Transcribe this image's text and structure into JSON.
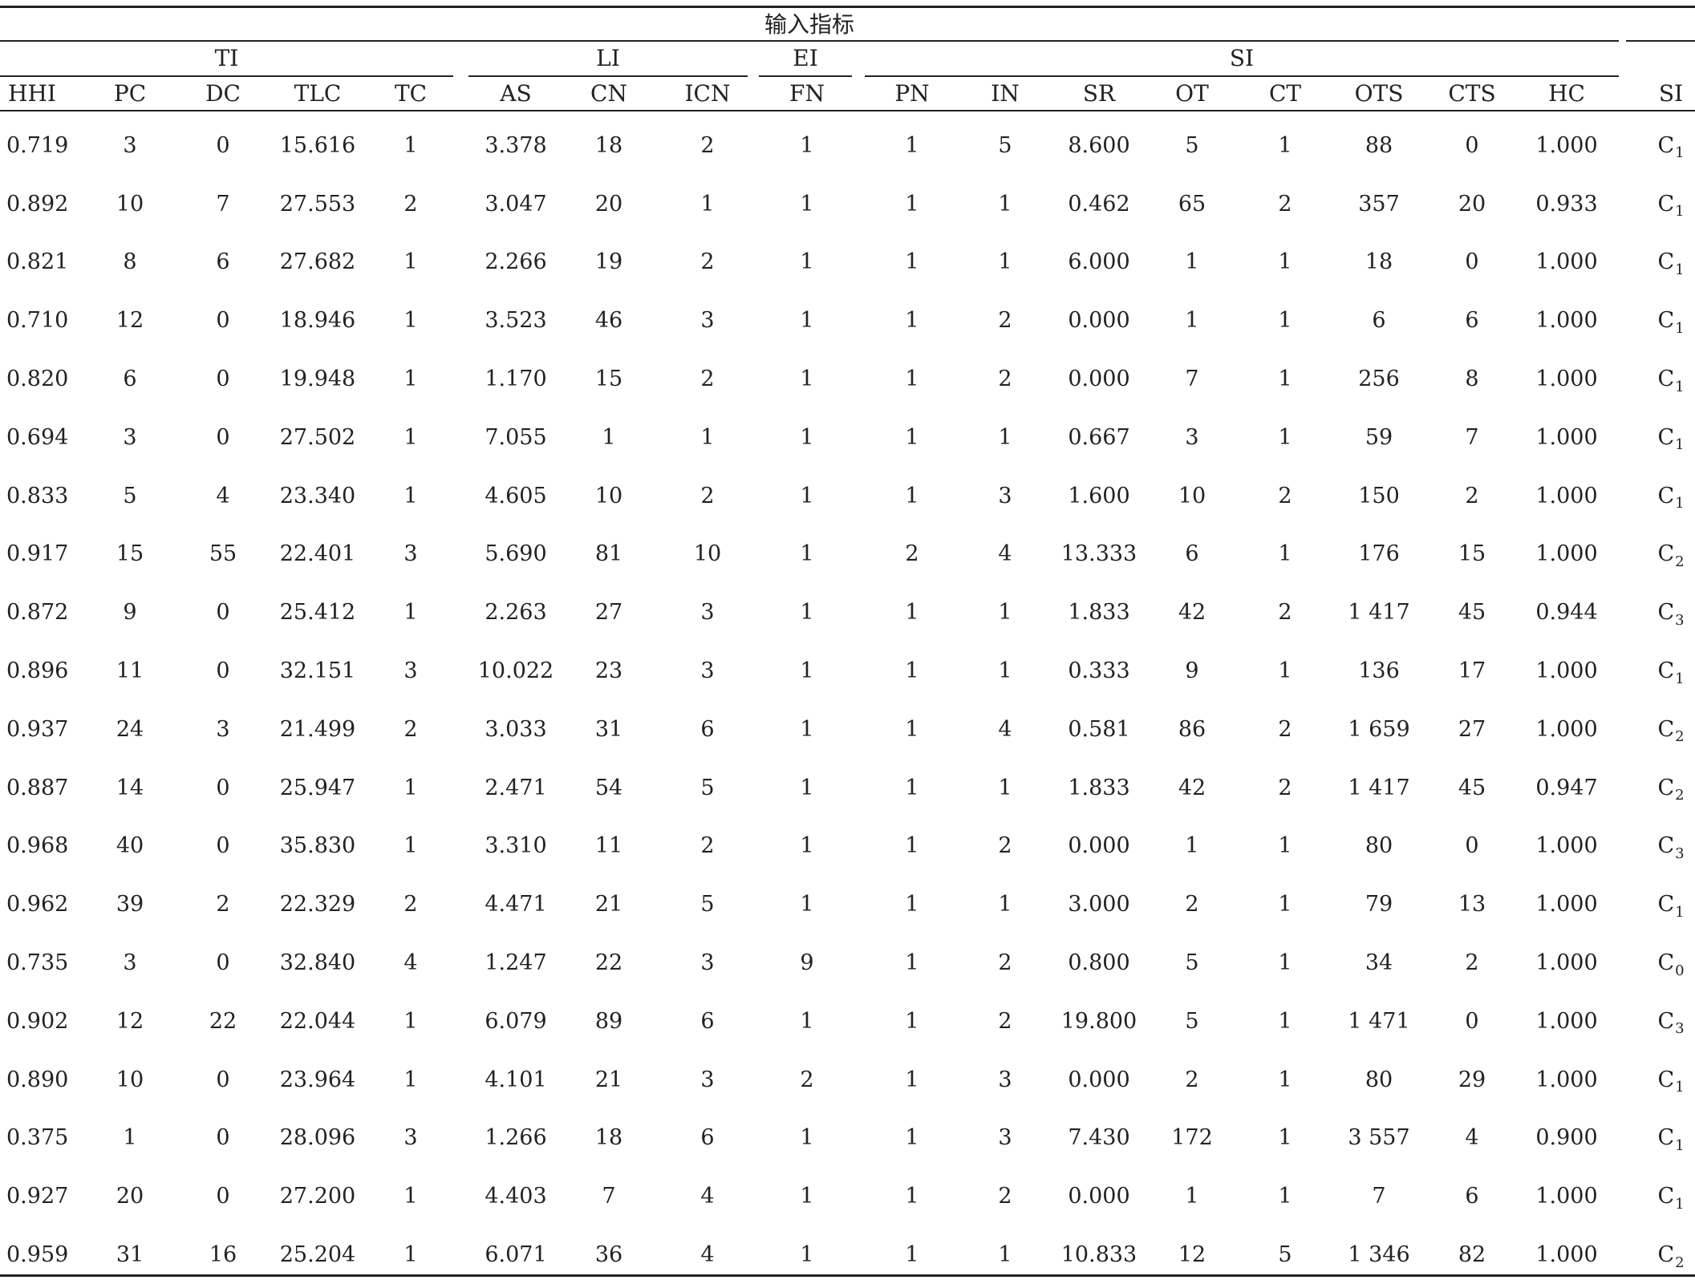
{
  "header": {
    "input_title": "输入指标",
    "groups": [
      {
        "label": "TI",
        "from": 0,
        "to": 4
      },
      {
        "label": "LI",
        "from": 5,
        "to": 7
      },
      {
        "label": "EI",
        "from": 8,
        "to": 8
      },
      {
        "label": "SI",
        "from": 9,
        "to": 16
      }
    ],
    "columns": [
      "HHI",
      "PC",
      "DC",
      "TLC",
      "TC",
      "AS",
      "CN",
      "ICN",
      "FN",
      "PN",
      "IN",
      "SR",
      "OT",
      "CT",
      "OTS",
      "CTS",
      "HC"
    ],
    "output_column": "SI"
  },
  "rows": [
    {
      "values": [
        "0.719",
        "3",
        "0",
        "15.616",
        "1",
        "3.378",
        "18",
        "2",
        "1",
        "1",
        "5",
        "8.600",
        "5",
        "1",
        "88",
        "0",
        "1.000"
      ],
      "si": {
        "letter": "C",
        "sub": "1"
      }
    },
    {
      "values": [
        "0.892",
        "10",
        "7",
        "27.553",
        "2",
        "3.047",
        "20",
        "1",
        "1",
        "1",
        "1",
        "0.462",
        "65",
        "2",
        "357",
        "20",
        "0.933"
      ],
      "si": {
        "letter": "C",
        "sub": "1"
      }
    },
    {
      "values": [
        "0.821",
        "8",
        "6",
        "27.682",
        "1",
        "2.266",
        "19",
        "2",
        "1",
        "1",
        "1",
        "6.000",
        "1",
        "1",
        "18",
        "0",
        "1.000"
      ],
      "si": {
        "letter": "C",
        "sub": "1"
      }
    },
    {
      "values": [
        "0.710",
        "12",
        "0",
        "18.946",
        "1",
        "3.523",
        "46",
        "3",
        "1",
        "1",
        "2",
        "0.000",
        "1",
        "1",
        "6",
        "6",
        "1.000"
      ],
      "si": {
        "letter": "C",
        "sub": "1"
      }
    },
    {
      "values": [
        "0.820",
        "6",
        "0",
        "19.948",
        "1",
        "1.170",
        "15",
        "2",
        "1",
        "1",
        "2",
        "0.000",
        "7",
        "1",
        "256",
        "8",
        "1.000"
      ],
      "si": {
        "letter": "C",
        "sub": "1"
      }
    },
    {
      "values": [
        "0.694",
        "3",
        "0",
        "27.502",
        "1",
        "7.055",
        "1",
        "1",
        "1",
        "1",
        "1",
        "0.667",
        "3",
        "1",
        "59",
        "7",
        "1.000"
      ],
      "si": {
        "letter": "C",
        "sub": "1"
      }
    },
    {
      "values": [
        "0.833",
        "5",
        "4",
        "23.340",
        "1",
        "4.605",
        "10",
        "2",
        "1",
        "1",
        "3",
        "1.600",
        "10",
        "2",
        "150",
        "2",
        "1.000"
      ],
      "si": {
        "letter": "C",
        "sub": "1"
      }
    },
    {
      "values": [
        "0.917",
        "15",
        "55",
        "22.401",
        "3",
        "5.690",
        "81",
        "10",
        "1",
        "2",
        "4",
        "13.333",
        "6",
        "1",
        "176",
        "15",
        "1.000"
      ],
      "si": {
        "letter": "C",
        "sub": "2"
      }
    },
    {
      "values": [
        "0.872",
        "9",
        "0",
        "25.412",
        "1",
        "2.263",
        "27",
        "3",
        "1",
        "1",
        "1",
        "1.833",
        "42",
        "2",
        "1 417",
        "45",
        "0.944"
      ],
      "si": {
        "letter": "C",
        "sub": "3"
      }
    },
    {
      "values": [
        "0.896",
        "11",
        "0",
        "32.151",
        "3",
        "10.022",
        "23",
        "3",
        "1",
        "1",
        "1",
        "0.333",
        "9",
        "1",
        "136",
        "17",
        "1.000"
      ],
      "si": {
        "letter": "C",
        "sub": "1"
      }
    },
    {
      "values": [
        "0.937",
        "24",
        "3",
        "21.499",
        "2",
        "3.033",
        "31",
        "6",
        "1",
        "1",
        "4",
        "0.581",
        "86",
        "2",
        "1 659",
        "27",
        "1.000"
      ],
      "si": {
        "letter": "C",
        "sub": "2"
      }
    },
    {
      "values": [
        "0.887",
        "14",
        "0",
        "25.947",
        "1",
        "2.471",
        "54",
        "5",
        "1",
        "1",
        "1",
        "1.833",
        "42",
        "2",
        "1 417",
        "45",
        "0.947"
      ],
      "si": {
        "letter": "C",
        "sub": "2"
      }
    },
    {
      "values": [
        "0.968",
        "40",
        "0",
        "35.830",
        "1",
        "3.310",
        "11",
        "2",
        "1",
        "1",
        "2",
        "0.000",
        "1",
        "1",
        "80",
        "0",
        "1.000"
      ],
      "si": {
        "letter": "C",
        "sub": "3"
      }
    },
    {
      "values": [
        "0.962",
        "39",
        "2",
        "22.329",
        "2",
        "4.471",
        "21",
        "5",
        "1",
        "1",
        "1",
        "3.000",
        "2",
        "1",
        "79",
        "13",
        "1.000"
      ],
      "si": {
        "letter": "C",
        "sub": "1"
      }
    },
    {
      "values": [
        "0.735",
        "3",
        "0",
        "32.840",
        "4",
        "1.247",
        "22",
        "3",
        "9",
        "1",
        "2",
        "0.800",
        "5",
        "1",
        "34",
        "2",
        "1.000"
      ],
      "si": {
        "letter": "C",
        "sub": "0"
      }
    },
    {
      "values": [
        "0.902",
        "12",
        "22",
        "22.044",
        "1",
        "6.079",
        "89",
        "6",
        "1",
        "1",
        "2",
        "19.800",
        "5",
        "1",
        "1 471",
        "0",
        "1.000"
      ],
      "si": {
        "letter": "C",
        "sub": "3"
      }
    },
    {
      "values": [
        "0.890",
        "10",
        "0",
        "23.964",
        "1",
        "4.101",
        "21",
        "3",
        "2",
        "1",
        "3",
        "0.000",
        "2",
        "1",
        "80",
        "29",
        "1.000"
      ],
      "si": {
        "letter": "C",
        "sub": "1"
      }
    },
    {
      "values": [
        "0.375",
        "1",
        "0",
        "28.096",
        "3",
        "1.266",
        "18",
        "6",
        "1",
        "1",
        "3",
        "7.430",
        "172",
        "1",
        "3 557",
        "4",
        "0.900"
      ],
      "si": {
        "letter": "C",
        "sub": "1"
      }
    },
    {
      "values": [
        "0.927",
        "20",
        "0",
        "27.200",
        "1",
        "4.403",
        "7",
        "4",
        "1",
        "1",
        "2",
        "0.000",
        "1",
        "1",
        "7",
        "6",
        "1.000"
      ],
      "si": {
        "letter": "C",
        "sub": "1"
      }
    },
    {
      "values": [
        "0.959",
        "31",
        "16",
        "25.204",
        "1",
        "6.071",
        "36",
        "4",
        "1",
        "1",
        "1",
        "10.833",
        "12",
        "5",
        "1 346",
        "82",
        "1.000"
      ],
      "si": {
        "letter": "C",
        "sub": "2"
      }
    }
  ]
}
